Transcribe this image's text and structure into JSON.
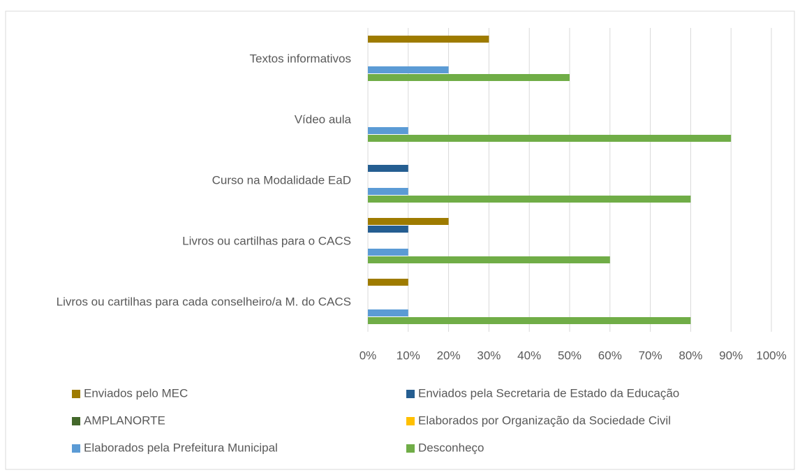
{
  "chart_data": {
    "type": "bar",
    "orientation": "horizontal",
    "categories": [
      "Textos informativos",
      "Vídeo aula ",
      "Curso na Modalidade EaD",
      "Livros ou cartilhas para o CACS",
      "Livros ou cartilhas para cada conselheiro/a M. do CACS"
    ],
    "series": [
      {
        "name": "Enviados pelo MEC",
        "color": "#9e7b00",
        "values": [
          30,
          0,
          0,
          20,
          10
        ]
      },
      {
        "name": "Enviados pela Secretaria de Estado da Educação",
        "color": "#255e91",
        "values": [
          0,
          0,
          10,
          10,
          0
        ]
      },
      {
        "name": "AMPLANORTE",
        "color": "#43682b",
        "values": [
          0,
          0,
          0,
          0,
          0
        ]
      },
      {
        "name": "Elaborados por Organização da Sociedade Civil",
        "color": "#ffc000",
        "values": [
          0,
          0,
          0,
          0,
          0
        ]
      },
      {
        "name": "Elaborados pela Prefeitura Municipal",
        "color": "#5b9bd5",
        "values": [
          20,
          10,
          10,
          10,
          10
        ]
      },
      {
        "name": "Desconheço",
        "color": "#70ad47",
        "values": [
          50,
          90,
          80,
          60,
          80
        ]
      }
    ],
    "xlim": [
      0,
      100
    ],
    "xticks": [
      {
        "value": 0,
        "label": "0%"
      },
      {
        "value": 10,
        "label": "10%"
      },
      {
        "value": 20,
        "label": "20%"
      },
      {
        "value": 30,
        "label": "30%"
      },
      {
        "value": 40,
        "label": "40%"
      },
      {
        "value": 50,
        "label": "50%"
      },
      {
        "value": 60,
        "label": "60%"
      },
      {
        "value": 70,
        "label": "70%"
      },
      {
        "value": 80,
        "label": "80%"
      },
      {
        "value": 90,
        "label": "90%"
      },
      {
        "value": 100,
        "label": "100%"
      }
    ],
    "grid": true,
    "legend": "bottom"
  }
}
